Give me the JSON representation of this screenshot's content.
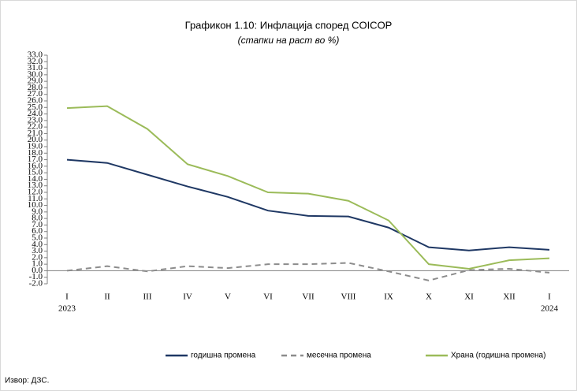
{
  "chart_data": {
    "type": "line",
    "title": "Графикон 1.10: Инфлација според COICOP",
    "subtitle": "(стапки на раст во %)",
    "source": "Извор: ДЗС.",
    "categories": [
      "I",
      "II",
      "III",
      "IV",
      "V",
      "VI",
      "VII",
      "VIII",
      "IX",
      "X",
      "XI",
      "XII",
      "I"
    ],
    "x_years": [
      "2023",
      null,
      null,
      null,
      null,
      null,
      null,
      null,
      null,
      null,
      null,
      null,
      "2024"
    ],
    "series": [
      {
        "name": "годишна промена",
        "color": "#1f3864",
        "dash": "solid",
        "values": [
          17.0,
          16.5,
          14.7,
          12.9,
          11.3,
          9.2,
          8.4,
          8.3,
          6.6,
          3.6,
          3.1,
          3.6,
          3.2
        ]
      },
      {
        "name": "месечна промена",
        "color": "#8c8c8c",
        "dash": "dashed",
        "values": [
          0.0,
          0.7,
          -0.1,
          0.7,
          0.4,
          1.0,
          1.0,
          1.2,
          -0.1,
          -1.5,
          0.1,
          0.3,
          -0.3
        ]
      },
      {
        "name": "Храна (годишна промена)",
        "color": "#9bbb59",
        "dash": "solid",
        "values": [
          24.9,
          25.2,
          21.7,
          16.3,
          14.5,
          12.0,
          11.8,
          10.7,
          7.7,
          1.0,
          0.3,
          1.6,
          1.9
        ]
      }
    ],
    "ylim": [
      -2,
      33
    ],
    "yticks": [
      {
        "value": -2,
        "label": "-2.0"
      },
      {
        "value": -1,
        "label": "-1.0"
      },
      {
        "value": 0,
        "label": "0.0"
      },
      {
        "value": 1,
        "label": "1.0"
      },
      {
        "value": 2,
        "label": "2.0"
      },
      {
        "value": 3,
        "label": "3.0"
      },
      {
        "value": 4,
        "label": "4.0"
      },
      {
        "value": 5,
        "label": "5.0"
      },
      {
        "value": 6,
        "label": "6.0"
      },
      {
        "value": 7,
        "label": "7.0"
      },
      {
        "value": 8,
        "label": "8.0"
      },
      {
        "value": 9,
        "label": "9.0"
      },
      {
        "value": 10,
        "label": "10.0"
      },
      {
        "value": 11,
        "label": "11.0"
      },
      {
        "value": 12,
        "label": "12.0"
      },
      {
        "value": 13,
        "label": "13.0"
      },
      {
        "value": 14,
        "label": "14.0"
      },
      {
        "value": 15,
        "label": "15.0"
      },
      {
        "value": 16,
        "label": "16.0"
      },
      {
        "value": 17,
        "label": "17.0"
      },
      {
        "value": 18,
        "label": "18.0"
      },
      {
        "value": 19,
        "label": "19.0"
      },
      {
        "value": 20,
        "label": "20.0"
      },
      {
        "value": 21,
        "label": "21.0"
      },
      {
        "value": 22,
        "label": "22.0"
      },
      {
        "value": 23,
        "label": "23.0"
      },
      {
        "value": 24,
        "label": "24.0"
      },
      {
        "value": 25,
        "label": "25.0"
      },
      {
        "value": 26,
        "label": "26.0"
      },
      {
        "value": 27,
        "label": "27.0"
      },
      {
        "value": 28,
        "label": "28.0"
      },
      {
        "value": 29,
        "label": "29.0"
      },
      {
        "value": 30,
        "label": "30.0"
      },
      {
        "value": 31,
        "label": "31.0"
      },
      {
        "value": 32,
        "label": "32.0"
      },
      {
        "value": 33,
        "label": "33.0"
      }
    ],
    "legend": "bottom"
  }
}
